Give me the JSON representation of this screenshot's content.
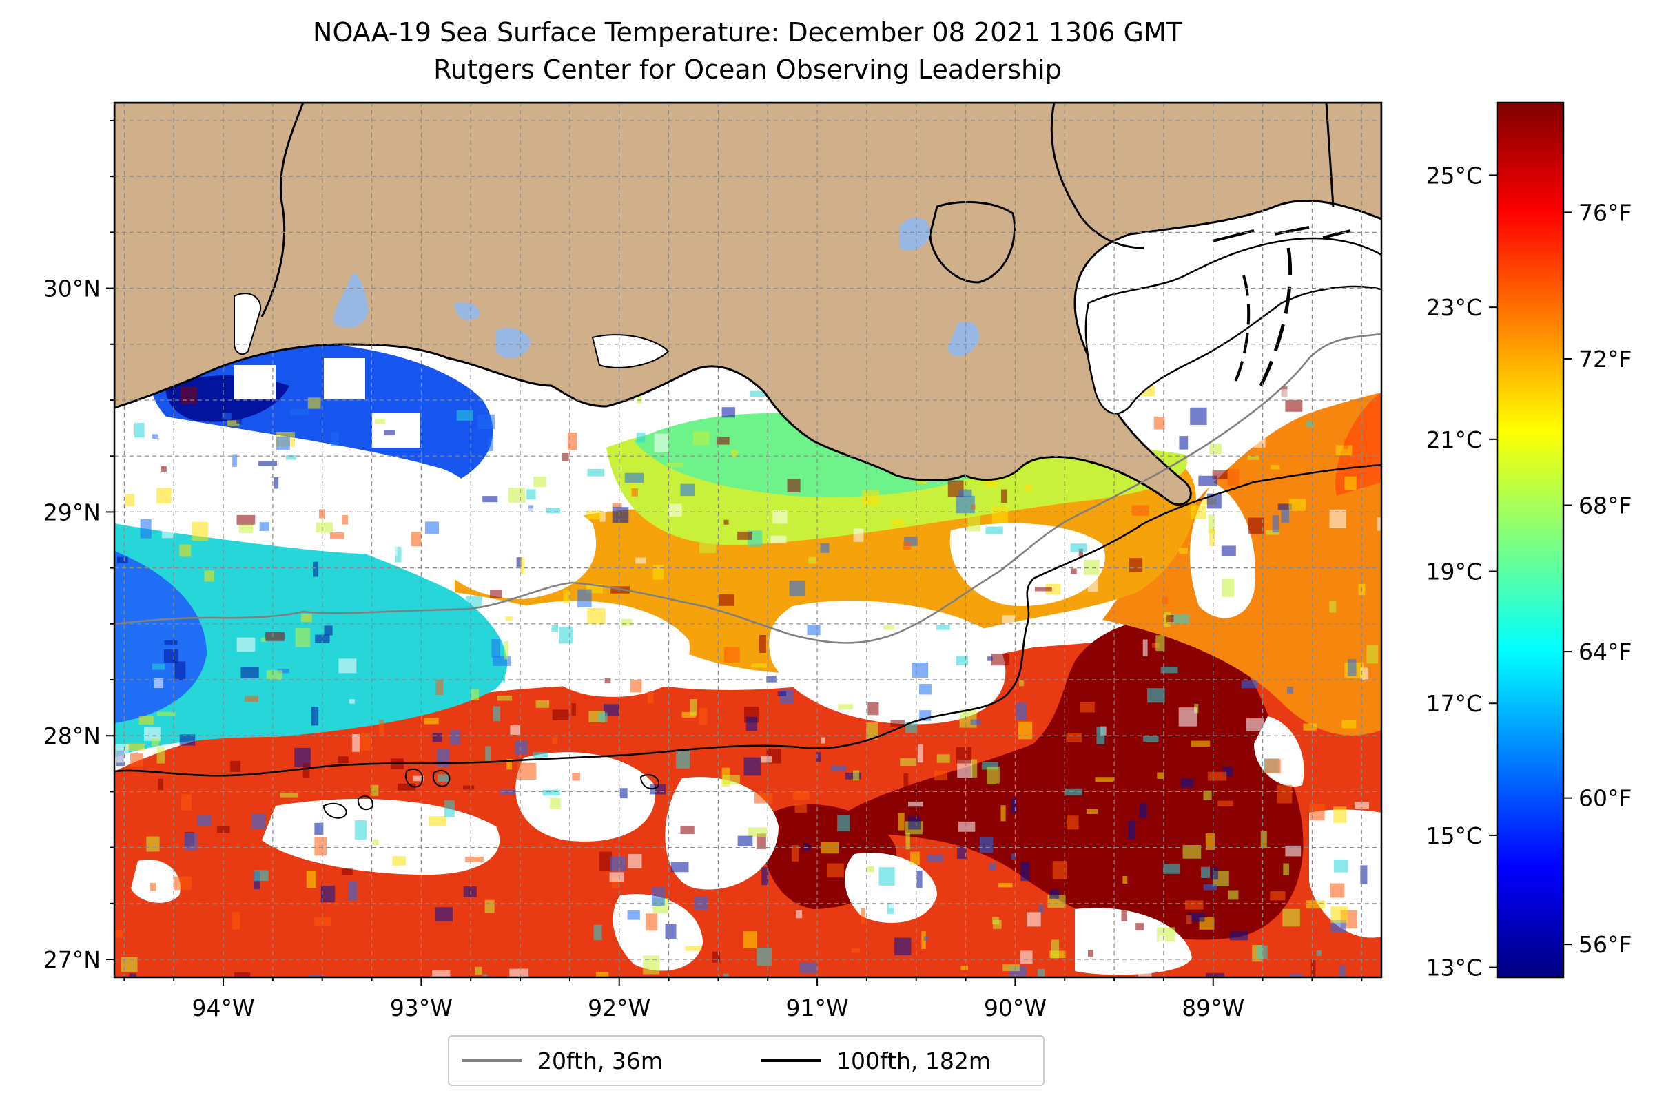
{
  "title": "NOAA-19 Sea Surface Temperature: December 08 2021 1306 GMT",
  "subtitle": "Rutgers Center for Ocean Observing Leadership",
  "map": {
    "projection": "plate-carree",
    "lon_range": [
      -94.55,
      -88.15
    ],
    "lat_range": [
      26.92,
      30.83
    ],
    "gridlines": true,
    "land_color": "#cfb08b",
    "lake_color": "#98b8e3",
    "no_data_color": "#ffffff",
    "colormap": "jet",
    "xticks": [
      {
        "value": -94,
        "label": "94°W"
      },
      {
        "value": -93,
        "label": "93°W"
      },
      {
        "value": -92,
        "label": "92°W"
      },
      {
        "value": -91,
        "label": "91°W"
      },
      {
        "value": -90,
        "label": "90°W"
      },
      {
        "value": -89,
        "label": "89°W"
      }
    ],
    "yticks": [
      {
        "value": 27,
        "label": "27°N"
      },
      {
        "value": 28,
        "label": "28°N"
      },
      {
        "value": 29,
        "label": "29°N"
      },
      {
        "value": 30,
        "label": "30°N"
      }
    ]
  },
  "colorbar": {
    "celsius_ticks": [
      {
        "value": 13,
        "label": "13°C"
      },
      {
        "value": 15,
        "label": "15°C"
      },
      {
        "value": 17,
        "label": "17°C"
      },
      {
        "value": 19,
        "label": "19°C"
      },
      {
        "value": 21,
        "label": "21°C"
      },
      {
        "value": 23,
        "label": "23°C"
      },
      {
        "value": 25,
        "label": "25°C"
      }
    ],
    "fahrenheit_ticks": [
      {
        "value": 56,
        "label": "56°F"
      },
      {
        "value": 60,
        "label": "60°F"
      },
      {
        "value": 64,
        "label": "64°F"
      },
      {
        "value": 68,
        "label": "68°F"
      },
      {
        "value": 72,
        "label": "72°F"
      },
      {
        "value": 76,
        "label": "76°F"
      }
    ],
    "range_f": [
      55.1,
      79.0
    ],
    "range_c": [
      12.85,
      26.1
    ],
    "colors": [
      "#00007f",
      "#0000ff",
      "#007fff",
      "#00ffff",
      "#7fff7f",
      "#ffff00",
      "#ff7f00",
      "#ff0000",
      "#7f0000"
    ]
  },
  "legend": {
    "placement": "bottom-center",
    "items": [
      {
        "label": "20fth, 36m",
        "color": "#808080"
      },
      {
        "label": "100fth, 182m",
        "color": "#000000"
      }
    ]
  }
}
